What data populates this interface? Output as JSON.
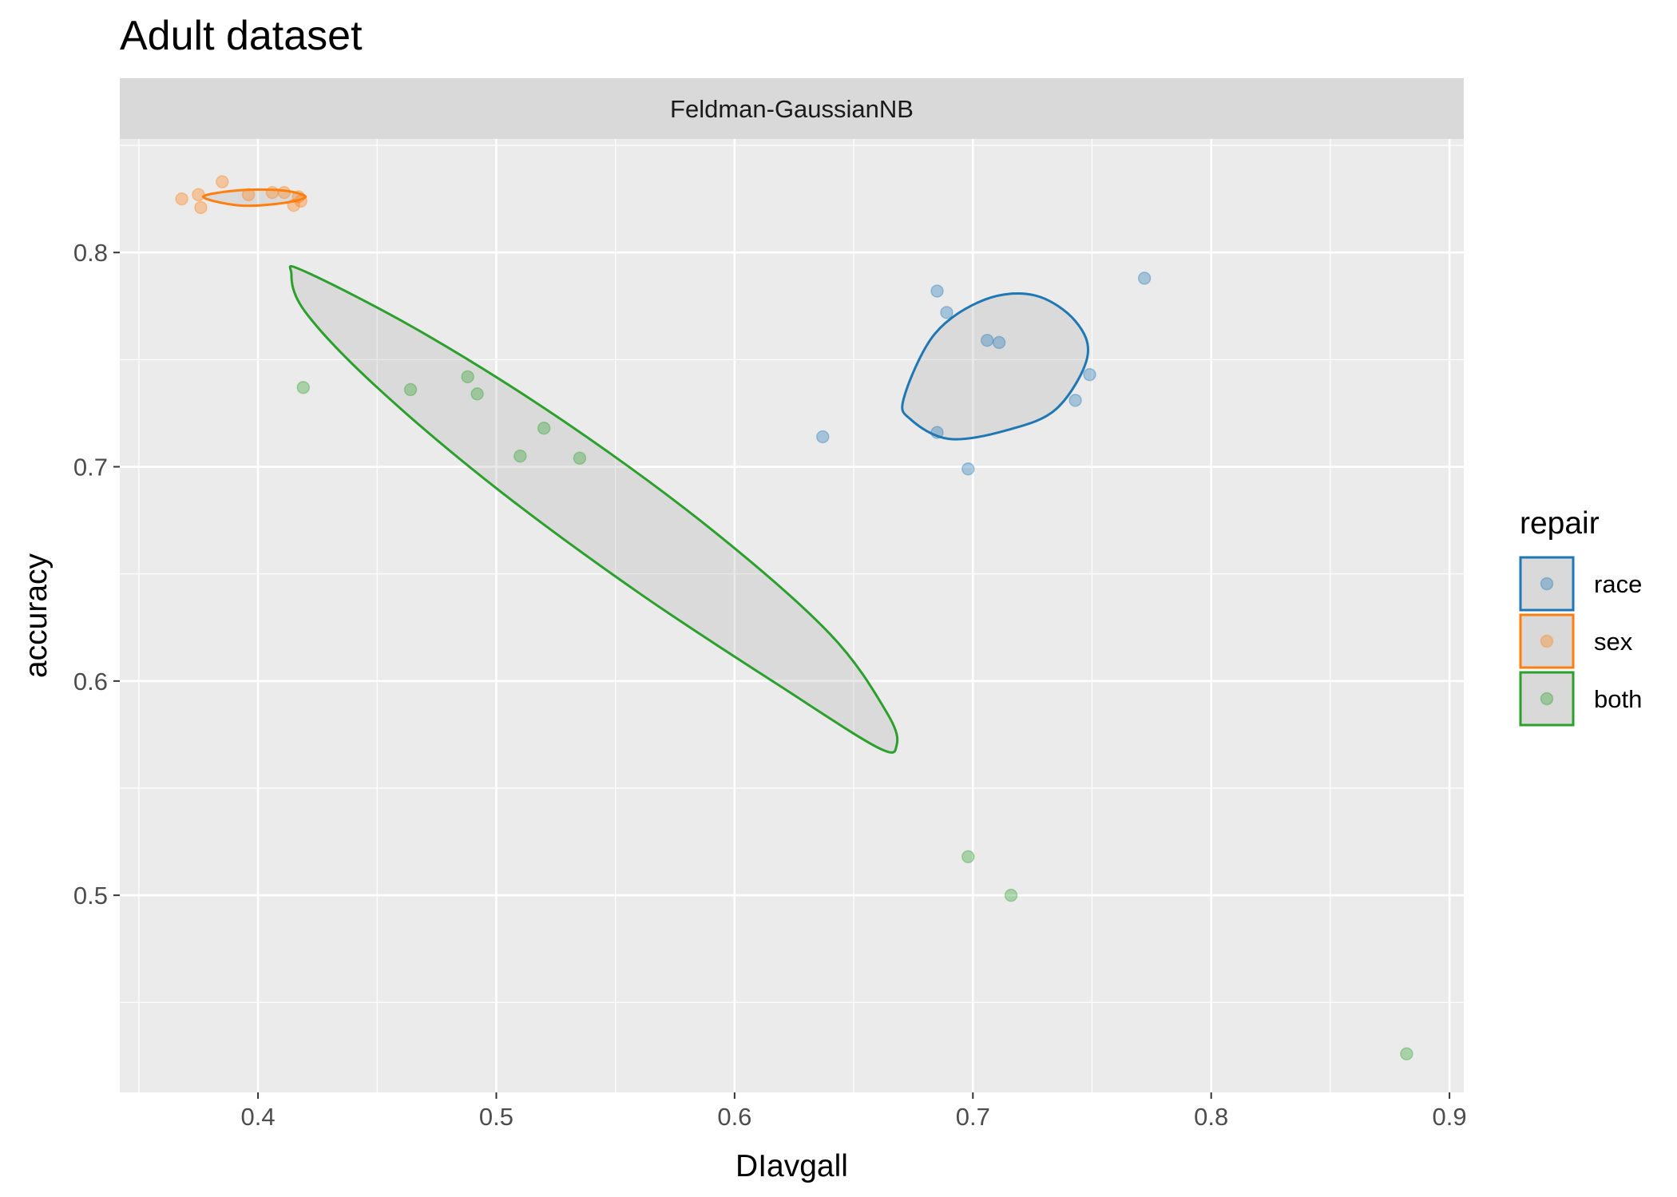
{
  "chart_data": {
    "type": "scatter",
    "title": "Adult dataset",
    "facet_label": "Feldman-GaussianNB",
    "xlabel": "DIavgall",
    "ylabel": "accuracy",
    "xlim": [
      0.342,
      0.906
    ],
    "ylim": [
      0.408,
      0.853
    ],
    "x_ticks": [
      0.4,
      0.5,
      0.6,
      0.7,
      0.8,
      0.9
    ],
    "x_tick_labels": [
      "0.4",
      "0.5",
      "0.6",
      "0.7",
      "0.8",
      "0.9"
    ],
    "y_ticks": [
      0.5,
      0.6,
      0.7,
      0.8
    ],
    "y_tick_labels": [
      "0.5",
      "0.6",
      "0.7",
      "0.8"
    ],
    "grid": true,
    "legend": {
      "title": "repair",
      "position": "right"
    },
    "series": [
      {
        "name": "race",
        "color": "#1f77b4",
        "points": [
          {
            "x": 0.637,
            "y": 0.714
          },
          {
            "x": 0.685,
            "y": 0.782
          },
          {
            "x": 0.689,
            "y": 0.772
          },
          {
            "x": 0.685,
            "y": 0.716
          },
          {
            "x": 0.698,
            "y": 0.699
          },
          {
            "x": 0.706,
            "y": 0.759
          },
          {
            "x": 0.711,
            "y": 0.758
          },
          {
            "x": 0.743,
            "y": 0.731
          },
          {
            "x": 0.749,
            "y": 0.743
          },
          {
            "x": 0.772,
            "y": 0.788
          }
        ],
        "ellipse": [
          {
            "x": 0.671,
            "y": 0.732
          },
          {
            "x": 0.684,
            "y": 0.762
          },
          {
            "x": 0.705,
            "y": 0.778
          },
          {
            "x": 0.726,
            "y": 0.78
          },
          {
            "x": 0.743,
            "y": 0.768
          },
          {
            "x": 0.748,
            "y": 0.751
          },
          {
            "x": 0.735,
            "y": 0.727
          },
          {
            "x": 0.714,
            "y": 0.717
          },
          {
            "x": 0.69,
            "y": 0.713
          },
          {
            "x": 0.674,
            "y": 0.722
          }
        ]
      },
      {
        "name": "sex",
        "color": "#ff7f0e",
        "points": [
          {
            "x": 0.368,
            "y": 0.825
          },
          {
            "x": 0.375,
            "y": 0.827
          },
          {
            "x": 0.376,
            "y": 0.821
          },
          {
            "x": 0.385,
            "y": 0.833
          },
          {
            "x": 0.396,
            "y": 0.827
          },
          {
            "x": 0.406,
            "y": 0.828
          },
          {
            "x": 0.411,
            "y": 0.828
          },
          {
            "x": 0.415,
            "y": 0.822
          },
          {
            "x": 0.417,
            "y": 0.826
          },
          {
            "x": 0.418,
            "y": 0.824
          }
        ],
        "ellipse": [
          {
            "x": 0.377,
            "y": 0.826
          },
          {
            "x": 0.392,
            "y": 0.829
          },
          {
            "x": 0.41,
            "y": 0.829
          },
          {
            "x": 0.42,
            "y": 0.826
          },
          {
            "x": 0.41,
            "y": 0.823
          },
          {
            "x": 0.392,
            "y": 0.822
          }
        ]
      },
      {
        "name": "both",
        "color": "#2ca02c",
        "points": [
          {
            "x": 0.419,
            "y": 0.737
          },
          {
            "x": 0.464,
            "y": 0.736
          },
          {
            "x": 0.488,
            "y": 0.742
          },
          {
            "x": 0.492,
            "y": 0.734
          },
          {
            "x": 0.51,
            "y": 0.705
          },
          {
            "x": 0.52,
            "y": 0.718
          },
          {
            "x": 0.535,
            "y": 0.704
          },
          {
            "x": 0.698,
            "y": 0.518
          },
          {
            "x": 0.716,
            "y": 0.5
          },
          {
            "x": 0.882,
            "y": 0.426
          }
        ],
        "ellipse": [
          {
            "x": 0.414,
            "y": 0.79
          },
          {
            "x": 0.42,
            "y": 0.791
          },
          {
            "x": 0.47,
            "y": 0.762
          },
          {
            "x": 0.53,
            "y": 0.72
          },
          {
            "x": 0.59,
            "y": 0.671
          },
          {
            "x": 0.64,
            "y": 0.622
          },
          {
            "x": 0.664,
            "y": 0.585
          },
          {
            "x": 0.668,
            "y": 0.57
          },
          {
            "x": 0.66,
            "y": 0.569
          },
          {
            "x": 0.62,
            "y": 0.597
          },
          {
            "x": 0.56,
            "y": 0.641
          },
          {
            "x": 0.5,
            "y": 0.69
          },
          {
            "x": 0.45,
            "y": 0.737
          },
          {
            "x": 0.42,
            "y": 0.772
          }
        ]
      }
    ]
  }
}
